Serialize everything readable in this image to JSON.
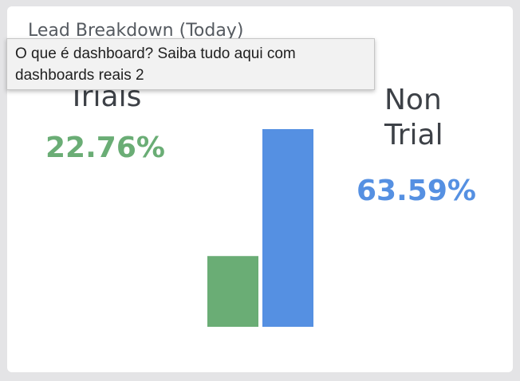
{
  "card": {
    "title": "Lead Breakdown (Today)"
  },
  "metrics": {
    "trials": {
      "label": "Trials",
      "value": "22.76%",
      "color": "#6aad75"
    },
    "non_trial": {
      "label": "Non Trial",
      "value": "63.59%",
      "color": "#5590e2"
    }
  },
  "chart_data": {
    "type": "bar",
    "categories": [
      "Trials",
      "Non Trial"
    ],
    "values": [
      22.76,
      63.59
    ],
    "colors": [
      "#6aad75",
      "#5590e2"
    ],
    "title": "Lead Breakdown (Today)",
    "ylim": [
      0,
      63.59
    ],
    "grid": false,
    "legend": "none"
  },
  "tooltip": {
    "text": "O que é dashboard? Saiba tudo aqui com dashboards reais 2"
  }
}
